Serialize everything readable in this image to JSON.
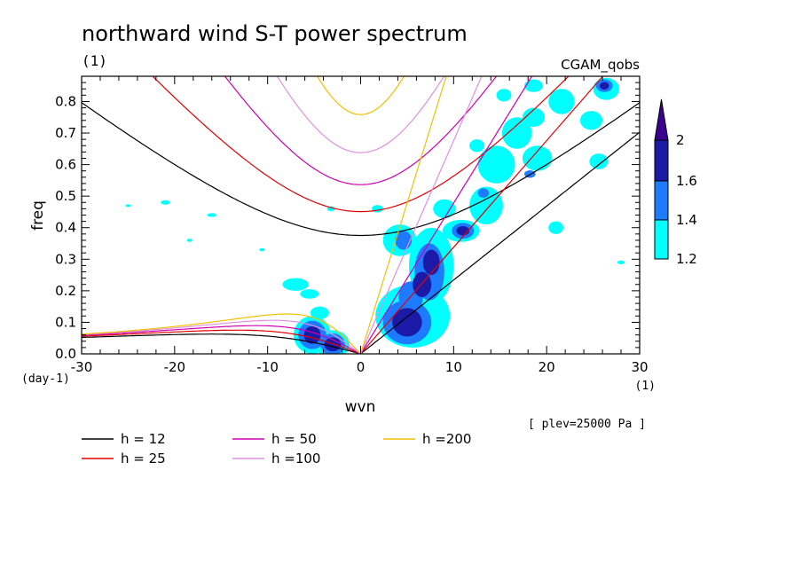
{
  "chart_data": {
    "type": "heatmap",
    "title": "northward wind S-T power spectrum",
    "subtitle_left": "(1)",
    "subtitle_right": "CGAM_qobs",
    "xlabel": "wvn",
    "ylabel": "freq",
    "x_unit": "(1)",
    "y_unit": "(day-1)",
    "note": "[ plev=25000 Pa ]",
    "xlim": [
      -30,
      30
    ],
    "ylim": [
      0,
      0.88
    ],
    "x_ticks": [
      -30,
      -20,
      -10,
      0,
      10,
      20,
      30
    ],
    "y_ticks": [
      0.0,
      0.1,
      0.2,
      0.3,
      0.4,
      0.5,
      0.6,
      0.7,
      0.8
    ],
    "x_tick_labels": [
      "-30",
      "-20",
      "-10",
      "0",
      "10",
      "20",
      "30"
    ],
    "y_tick_labels": [
      "0.0",
      "0.1",
      "0.2",
      "0.3",
      "0.4",
      "0.5",
      "0.6",
      "0.7",
      "0.8"
    ],
    "colorbar": {
      "levels": [
        "1.2",
        "1.4",
        "1.6",
        "2"
      ],
      "colors": [
        "#00ffff",
        "#1e7bff",
        "#1a1aa6",
        "#3a0090"
      ]
    },
    "dispersion_curves": [
      {
        "label": "h = 12",
        "h": 12,
        "color": "#000000"
      },
      {
        "label": "h = 25",
        "h": 25,
        "color": "#e00000"
      },
      {
        "label": "h = 50",
        "h": 50,
        "color": "#d000b0"
      },
      {
        "label": "h =100",
        "h": 100,
        "color": "#e090e0"
      },
      {
        "label": "h =200",
        "h": 200,
        "color": "#f0c000"
      }
    ],
    "contour_blobs": [
      {
        "x": 5.0,
        "y": 0.1,
        "rx": 1.6,
        "ry": 0.045,
        "level": 2
      },
      {
        "x": 7.6,
        "y": 0.29,
        "rx": 0.9,
        "ry": 0.04,
        "level": 2
      },
      {
        "x": 6.6,
        "y": 0.22,
        "rx": 1.0,
        "ry": 0.04,
        "level": 2
      },
      {
        "x": 11.0,
        "y": 0.39,
        "rx": 0.7,
        "ry": 0.015,
        "level": 2
      },
      {
        "x": 26.2,
        "y": 0.85,
        "rx": 0.5,
        "ry": 0.012,
        "level": 2
      },
      {
        "x": -5.2,
        "y": 0.06,
        "rx": 0.9,
        "ry": 0.028,
        "level": 2
      },
      {
        "x": -3.0,
        "y": 0.03,
        "rx": 0.9,
        "ry": 0.022,
        "level": 2
      },
      {
        "x": 5.0,
        "y": 0.1,
        "rx": 2.6,
        "ry": 0.07,
        "level": 1
      },
      {
        "x": 7.4,
        "y": 0.26,
        "rx": 1.6,
        "ry": 0.09,
        "level": 1
      },
      {
        "x": 5.4,
        "y": 0.18,
        "rx": 1.3,
        "ry": 0.05,
        "level": 1
      },
      {
        "x": 4.6,
        "y": 0.36,
        "rx": 0.9,
        "ry": 0.03,
        "level": 1
      },
      {
        "x": 11.0,
        "y": 0.39,
        "rx": 1.2,
        "ry": 0.025,
        "level": 1
      },
      {
        "x": 13.2,
        "y": 0.51,
        "rx": 0.6,
        "ry": 0.015,
        "level": 1
      },
      {
        "x": 18.2,
        "y": 0.57,
        "rx": 0.6,
        "ry": 0.012,
        "level": 1
      },
      {
        "x": 26.2,
        "y": 0.85,
        "rx": 0.9,
        "ry": 0.02,
        "level": 1
      },
      {
        "x": -5.2,
        "y": 0.06,
        "rx": 1.5,
        "ry": 0.045,
        "level": 1
      },
      {
        "x": -3.0,
        "y": 0.03,
        "rx": 1.3,
        "ry": 0.035,
        "level": 1
      },
      {
        "x": 5.6,
        "y": 0.12,
        "rx": 4.0,
        "ry": 0.1,
        "level": 0
      },
      {
        "x": 7.6,
        "y": 0.28,
        "rx": 2.4,
        "ry": 0.12,
        "level": 0
      },
      {
        "x": 4.2,
        "y": 0.36,
        "rx": 1.8,
        "ry": 0.05,
        "level": 0
      },
      {
        "x": 10.8,
        "y": 0.39,
        "rx": 2.0,
        "ry": 0.035,
        "level": 0
      },
      {
        "x": 9.0,
        "y": 0.46,
        "rx": 1.2,
        "ry": 0.03,
        "level": 0
      },
      {
        "x": 13.5,
        "y": 0.47,
        "rx": 1.8,
        "ry": 0.06,
        "level": 0
      },
      {
        "x": 14.6,
        "y": 0.6,
        "rx": 2.0,
        "ry": 0.06,
        "level": 0
      },
      {
        "x": 16.8,
        "y": 0.7,
        "rx": 1.6,
        "ry": 0.05,
        "level": 0
      },
      {
        "x": 19.0,
        "y": 0.62,
        "rx": 1.6,
        "ry": 0.04,
        "level": 0
      },
      {
        "x": 18.6,
        "y": 0.75,
        "rx": 1.2,
        "ry": 0.03,
        "level": 0
      },
      {
        "x": 21.6,
        "y": 0.8,
        "rx": 1.4,
        "ry": 0.04,
        "level": 0
      },
      {
        "x": 24.8,
        "y": 0.74,
        "rx": 1.2,
        "ry": 0.03,
        "level": 0
      },
      {
        "x": 25.6,
        "y": 0.61,
        "rx": 1.0,
        "ry": 0.025,
        "level": 0
      },
      {
        "x": 26.4,
        "y": 0.84,
        "rx": 1.4,
        "ry": 0.035,
        "level": 0
      },
      {
        "x": 18.6,
        "y": 0.85,
        "rx": 1.0,
        "ry": 0.02,
        "level": 0
      },
      {
        "x": 15.4,
        "y": 0.82,
        "rx": 0.8,
        "ry": 0.02,
        "level": 0
      },
      {
        "x": 21.0,
        "y": 0.4,
        "rx": 0.8,
        "ry": 0.02,
        "level": 0
      },
      {
        "x": 12.5,
        "y": 0.66,
        "rx": 0.8,
        "ry": 0.02,
        "level": 0
      },
      {
        "x": -7.0,
        "y": 0.22,
        "rx": 1.4,
        "ry": 0.02,
        "level": 0
      },
      {
        "x": -5.5,
        "y": 0.19,
        "rx": 1.0,
        "ry": 0.015,
        "level": 0
      },
      {
        "x": -4.4,
        "y": 0.13,
        "rx": 1.0,
        "ry": 0.02,
        "level": 0
      },
      {
        "x": -5.2,
        "y": 0.06,
        "rx": 2.0,
        "ry": 0.06,
        "level": 0
      },
      {
        "x": -3.0,
        "y": 0.03,
        "rx": 1.8,
        "ry": 0.045,
        "level": 0
      },
      {
        "x": -21.0,
        "y": 0.48,
        "rx": 0.5,
        "ry": 0.007,
        "level": 0
      },
      {
        "x": -16.0,
        "y": 0.44,
        "rx": 0.5,
        "ry": 0.006,
        "level": 0
      },
      {
        "x": -3.2,
        "y": 0.46,
        "rx": 0.4,
        "ry": 0.008,
        "level": 0
      },
      {
        "x": -18.4,
        "y": 0.36,
        "rx": 0.3,
        "ry": 0.005,
        "level": 0
      },
      {
        "x": -25.0,
        "y": 0.47,
        "rx": 0.3,
        "ry": 0.004,
        "level": 0
      },
      {
        "x": -10.6,
        "y": 0.33,
        "rx": 0.3,
        "ry": 0.005,
        "level": 0
      },
      {
        "x": 28.0,
        "y": 0.29,
        "rx": 0.4,
        "ry": 0.006,
        "level": 0
      },
      {
        "x": 1.8,
        "y": 0.46,
        "rx": 0.6,
        "ry": 0.012,
        "level": 0
      }
    ]
  },
  "legend": [
    {
      "label": "h = 12",
      "color": "#000000"
    },
    {
      "label": "h = 25",
      "color": "#e00000"
    },
    {
      "label": "h = 50",
      "color": "#d000b0"
    },
    {
      "label": "h =100",
      "color": "#e090e0"
    },
    {
      "label": "h =200",
      "color": "#f0c000"
    }
  ]
}
